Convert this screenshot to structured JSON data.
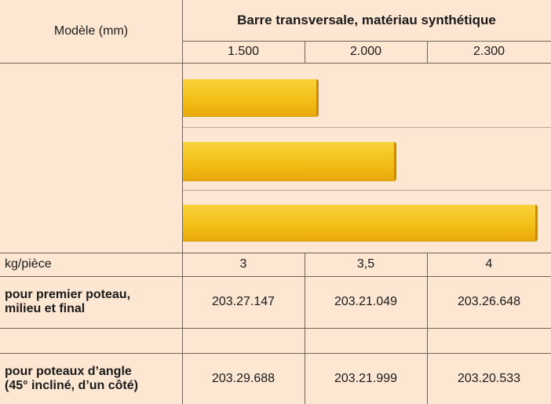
{
  "table": {
    "header": {
      "model_label": "Modèle (mm)",
      "title": "Barre transversale, matériau synthétique",
      "sizes": [
        "1.500",
        "2.000",
        "2.300"
      ]
    },
    "rows": [
      {
        "label": [
          "kg/pièce"
        ],
        "values": [
          "3",
          "3,5",
          "4"
        ]
      },
      {
        "label": [
          "pour premier poteau,",
          "milieu et final"
        ],
        "values": [
          "203.27.147",
          "203.21.049",
          "203.26.648"
        ]
      },
      {
        "label": [
          "pour poteaux d’angle",
          "(45° incliné, d’un côté)"
        ],
        "values": [
          "203.29.688",
          "203.21.999",
          "203.20.533"
        ]
      }
    ]
  }
}
